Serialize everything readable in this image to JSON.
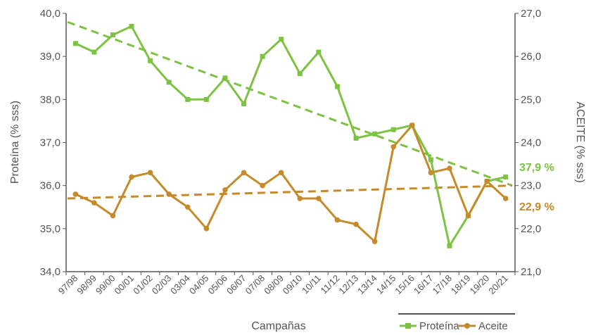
{
  "chart_data": {
    "type": "line",
    "xlabel": "Campañas",
    "ylabel_left": "Proteína (% sss)",
    "ylabel_right": "ACEITE (% sss)",
    "categories": [
      "97/98",
      "98/99",
      "99/00",
      "00/01",
      "01/02",
      "02/03",
      "03/04",
      "04/05",
      "05/06",
      "06/07",
      "07/08",
      "08/09",
      "09/10",
      "10/11",
      "11/12",
      "12/13",
      "13/14",
      "14/15",
      "15/16",
      "16/17",
      "17/18",
      "18/19",
      "19/20",
      "20/21"
    ],
    "y_left": {
      "min": 34,
      "max": 40,
      "step": 1,
      "tick_labels": [
        "34,0",
        "35,0",
        "36,0",
        "37,0",
        "38,0",
        "39,0",
        "40,0"
      ]
    },
    "y_right": {
      "min": 21,
      "max": 27,
      "step": 1,
      "tick_labels": [
        "21,0",
        "22,0",
        "23,0",
        "24,0",
        "25,0",
        "26,0",
        "27,0"
      ]
    },
    "grid": false,
    "legend_position": "bottom-right",
    "series": [
      {
        "name": "Proteína",
        "axis": "left",
        "color": "#7dc242",
        "marker": "square",
        "values": [
          39.3,
          39.1,
          39.5,
          39.7,
          38.9,
          38.4,
          38.0,
          38.0,
          38.5,
          37.9,
          39.0,
          39.4,
          38.6,
          39.1,
          38.3,
          37.1,
          37.2,
          37.3,
          37.4,
          36.6,
          34.6,
          35.3,
          36.1,
          36.2
        ],
        "trend": {
          "start": 39.8,
          "end": 36.0
        },
        "end_label": "37,9 %"
      },
      {
        "name": "Aceite",
        "axis": "right",
        "color": "#c58a29",
        "marker": "circle",
        "values": [
          22.8,
          22.6,
          22.3,
          23.2,
          23.3,
          22.8,
          22.5,
          22.0,
          22.9,
          23.3,
          23.0,
          23.3,
          22.7,
          22.7,
          22.2,
          22.1,
          21.7,
          23.9,
          24.4,
          23.3,
          23.4,
          22.3,
          23.1,
          22.7
        ],
        "trend": {
          "start": 22.7,
          "end": 23.0
        },
        "end_label": "22,9 %"
      }
    ]
  }
}
